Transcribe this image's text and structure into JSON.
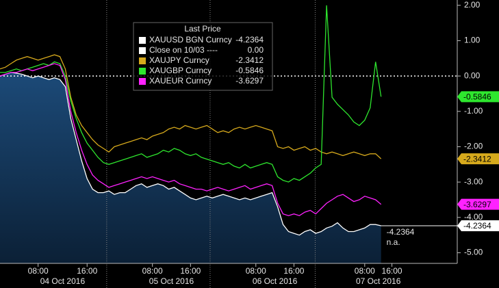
{
  "chart_data": {
    "type": "line",
    "legend_title": "Last Price",
    "categories": [
      null,
      null,
      null,
      null,
      null,
      null,
      null,
      "08:00",
      null,
      null,
      null,
      null,
      null,
      null,
      null,
      null,
      "16:00",
      null,
      null,
      null,
      null,
      null,
      null,
      null,
      null,
      null,
      null,
      null,
      "08:00",
      null,
      null,
      null,
      null,
      null,
      null,
      "16:00",
      null,
      null,
      null,
      null,
      null,
      null,
      null,
      null,
      null,
      null,
      null,
      "08:00",
      null,
      null,
      null,
      null,
      null,
      null,
      "16:00",
      null,
      null,
      null,
      null,
      null,
      null,
      null,
      null,
      null,
      null,
      null,
      null,
      "08:00",
      null,
      null,
      null,
      null,
      "16:00",
      null,
      null,
      null,
      null,
      null,
      null,
      null,
      null,
      null,
      null,
      null
    ],
    "date_labels": [
      "04 Oct 2016",
      "05 Oct 2016",
      "06 Oct 2016",
      "07 Oct 2016"
    ],
    "ylim": [
      -5.3,
      2.15
    ],
    "yticks": [
      {
        "value": 2,
        "label": "2.00"
      },
      {
        "value": 1,
        "label": "1.00"
      },
      {
        "value": 0,
        "label": "0.00"
      },
      {
        "value": -1,
        "label": "-1.00"
      },
      {
        "value": -2,
        "label": "-2.00"
      },
      {
        "value": -3,
        "label": "-3.00"
      },
      {
        "value": -4,
        "label": "-4.00"
      },
      {
        "value": -5,
        "label": "-5.00"
      }
    ],
    "reference_line": {
      "name": "Close on 10/03 ----",
      "value": {
        "value": 0,
        "label": "0.00"
      },
      "end_label": "n.a.",
      "color": "#ffffff"
    },
    "series": [
      {
        "name": "XAUUSD BGN Curncy",
        "color": "#ffffff",
        "area": true,
        "values": [
          0.0,
          0.05,
          0.1,
          0.08,
          0.05,
          0.0,
          -0.05,
          0.0,
          -0.05,
          -0.1,
          -0.05,
          -0.1,
          -0.3,
          -1.2,
          -1.8,
          -2.4,
          -2.9,
          -3.2,
          -3.3,
          -3.3,
          -3.25,
          -3.35,
          -3.3,
          -3.3,
          -3.2,
          -3.1,
          -3.05,
          -3.15,
          -3.1,
          -3.05,
          -3.1,
          -3.2,
          -3.15,
          -3.25,
          -3.35,
          -3.45,
          -3.5,
          -3.45,
          -3.4,
          -3.45,
          -3.4,
          -3.35,
          -3.4,
          -3.45,
          -3.5,
          -3.45,
          -3.5,
          -3.45,
          -3.4,
          -3.35,
          -3.3,
          -3.7,
          -4.2,
          -4.4,
          -4.45,
          -4.5,
          -4.4,
          -4.35,
          -4.45,
          -4.4,
          -4.3,
          -4.25,
          -4.15,
          -4.3,
          -4.4,
          -4.4,
          -4.35,
          -4.3,
          -4.2,
          -4.2,
          -4.2364,
          null,
          null,
          null,
          null,
          null,
          null,
          null,
          null,
          null,
          null,
          null,
          null,
          null
        ]
      },
      {
        "name": "XAUJPY Curncy",
        "color": "#d6a91c",
        "values": [
          0.2,
          0.25,
          0.35,
          0.45,
          0.5,
          0.55,
          0.5,
          0.45,
          0.5,
          0.55,
          0.6,
          0.55,
          0.2,
          -0.6,
          -1.1,
          -1.4,
          -1.6,
          -1.8,
          -1.95,
          -2.05,
          -2.15,
          -2.0,
          -1.95,
          -1.9,
          -1.85,
          -1.8,
          -1.75,
          -1.8,
          -1.7,
          -1.65,
          -1.6,
          -1.5,
          -1.45,
          -1.5,
          -1.4,
          -1.45,
          -1.5,
          -1.45,
          -1.4,
          -1.5,
          -1.6,
          -1.55,
          -1.6,
          -1.5,
          -1.45,
          -1.5,
          -1.45,
          -1.4,
          -1.45,
          -1.5,
          -1.55,
          -2.0,
          -2.05,
          -2.0,
          -2.1,
          -2.05,
          -2.0,
          -2.1,
          -2.05,
          -2.15,
          -2.2,
          -2.15,
          -2.2,
          -2.25,
          -2.2,
          -2.15,
          -2.2,
          -2.25,
          -2.2,
          -2.2,
          -2.3412,
          null,
          null,
          null,
          null,
          null,
          null,
          null,
          null,
          null,
          null,
          null,
          null,
          null
        ]
      },
      {
        "name": "XAUGBP Curncy",
        "color": "#2ee62e",
        "values": [
          0.1,
          0.1,
          0.15,
          0.2,
          0.15,
          0.2,
          0.25,
          0.3,
          0.35,
          0.3,
          0.4,
          0.35,
          0.0,
          -0.7,
          -1.2,
          -1.6,
          -1.9,
          -2.1,
          -2.3,
          -2.45,
          -2.5,
          -2.45,
          -2.4,
          -2.35,
          -2.3,
          -2.25,
          -2.2,
          -2.3,
          -2.25,
          -2.2,
          -2.1,
          -2.15,
          -2.05,
          -2.1,
          -2.2,
          -2.25,
          -2.2,
          -2.3,
          -2.35,
          -2.4,
          -2.45,
          -2.5,
          -2.45,
          -2.55,
          -2.6,
          -2.5,
          -2.6,
          -2.55,
          -2.5,
          -2.45,
          -2.5,
          -2.85,
          -2.95,
          -3.0,
          -2.9,
          -2.95,
          -2.85,
          -2.75,
          -2.6,
          -2.5,
          2.0,
          -0.6,
          -0.8,
          -0.95,
          -1.1,
          -1.3,
          -1.4,
          -1.25,
          -0.9,
          0.4,
          -0.5846,
          null,
          null,
          null,
          null,
          null,
          null,
          null,
          null,
          null,
          null,
          null,
          null,
          null
        ]
      },
      {
        "name": "XAUEUR Curncy",
        "color": "#ff22ff",
        "values": [
          0.0,
          0.05,
          0.1,
          0.1,
          0.15,
          0.2,
          0.15,
          0.2,
          0.25,
          0.3,
          0.35,
          0.3,
          -0.1,
          -1.0,
          -1.6,
          -2.1,
          -2.5,
          -2.8,
          -2.95,
          -3.05,
          -3.15,
          -3.1,
          -3.05,
          -3.0,
          -2.95,
          -2.9,
          -2.85,
          -2.9,
          -2.85,
          -2.9,
          -2.95,
          -3.0,
          -2.95,
          -3.05,
          -3.1,
          -3.15,
          -3.2,
          -3.2,
          -3.25,
          -3.2,
          -3.15,
          -3.2,
          -3.25,
          -3.2,
          -3.15,
          -3.1,
          -3.2,
          -3.15,
          -3.1,
          -3.05,
          -3.1,
          -3.6,
          -3.9,
          -3.95,
          -3.9,
          -3.95,
          -3.85,
          -3.8,
          -3.9,
          -3.75,
          -3.6,
          -3.5,
          -3.4,
          -3.35,
          -3.45,
          -3.55,
          -3.5,
          -3.4,
          -3.45,
          -3.5,
          -3.6297,
          null,
          null,
          null,
          null,
          null,
          null,
          null,
          null,
          null,
          null,
          null,
          null,
          null
        ]
      }
    ]
  }
}
